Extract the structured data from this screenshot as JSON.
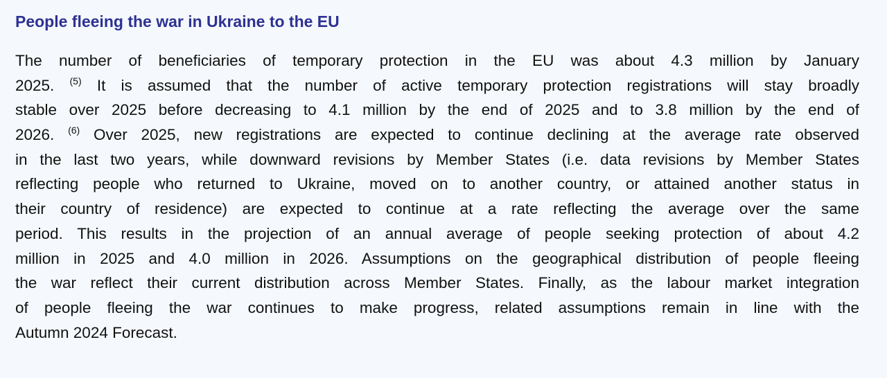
{
  "title": "People fleeing the war in Ukraine to the EU",
  "lines": [
    "The number of beneficiaries of temporary protection in the EU was about 4.3 million by January",
    "2025.",
    "(5)",
    " It is assumed that the number of active temporary protection registrations will stay broadly",
    "stable over 2025 before decreasing to 4.1 million by the end of 2025 and to 3.8 million by the end of",
    "2026.",
    "(6)",
    " Over 2025, new registrations are expected to continue declining at the average rate observed",
    "in the last two years, while downward revisions by Member States (i.e. data revisions by Member States",
    "reflecting people who returned to Ukraine, moved on to another country, or attained another status in",
    "their country of residence) are expected to continue at a rate reflecting the average over the same",
    "period. This results in the projection of an annual average of people seeking protection of about 4.2",
    "million in 2025 and 4.0 million in 2026. Assumptions on the geographical distribution of people fleeing",
    "the war reflect their current distribution across Member States. Finally, as the labour market integration",
    "of people fleeing the war continues to make progress, related assumptions remain in line with the",
    "Autumn 2024 Forecast."
  ],
  "colors": {
    "title": "#2e3192",
    "background": "#f5f9fd",
    "text": "#111111"
  }
}
